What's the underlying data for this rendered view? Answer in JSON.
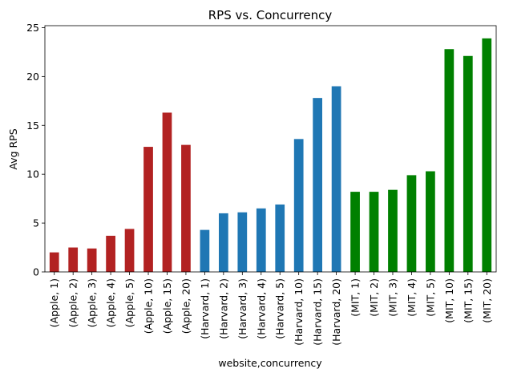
{
  "chart_data": {
    "type": "bar",
    "title": "RPS vs. Concurrency",
    "xlabel": "website,concurrency",
    "ylabel": "Avg RPS",
    "ylim": [
      0,
      25.2
    ],
    "yticks": [
      0,
      5,
      10,
      15,
      20,
      25
    ],
    "grid": false,
    "legend": "none",
    "categories": [
      "(Apple, 1)",
      "(Apple, 2)",
      "(Apple, 3)",
      "(Apple, 4)",
      "(Apple, 5)",
      "(Apple, 10)",
      "(Apple, 15)",
      "(Apple, 20)",
      "(Harvard, 1)",
      "(Harvard, 2)",
      "(Harvard, 3)",
      "(Harvard, 4)",
      "(Harvard, 5)",
      "(Harvard, 10)",
      "(Harvard, 15)",
      "(Harvard, 20)",
      "(MIT, 1)",
      "(MIT, 2)",
      "(MIT, 3)",
      "(MIT, 4)",
      "(MIT, 5)",
      "(MIT, 10)",
      "(MIT, 15)",
      "(MIT, 20)"
    ],
    "values": [
      2.0,
      2.5,
      2.4,
      3.7,
      4.4,
      12.8,
      16.3,
      13.0,
      4.3,
      6.0,
      6.1,
      6.5,
      6.9,
      13.6,
      17.8,
      19.0,
      8.2,
      8.2,
      8.4,
      9.9,
      10.3,
      22.8,
      22.1,
      23.9
    ],
    "colors": [
      "#b22222",
      "#b22222",
      "#b22222",
      "#b22222",
      "#b22222",
      "#b22222",
      "#b22222",
      "#b22222",
      "#1f77b4",
      "#1f77b4",
      "#1f77b4",
      "#1f77b4",
      "#1f77b4",
      "#1f77b4",
      "#1f77b4",
      "#1f77b4",
      "#008000",
      "#008000",
      "#008000",
      "#008000",
      "#008000",
      "#008000",
      "#008000",
      "#008000"
    ]
  }
}
